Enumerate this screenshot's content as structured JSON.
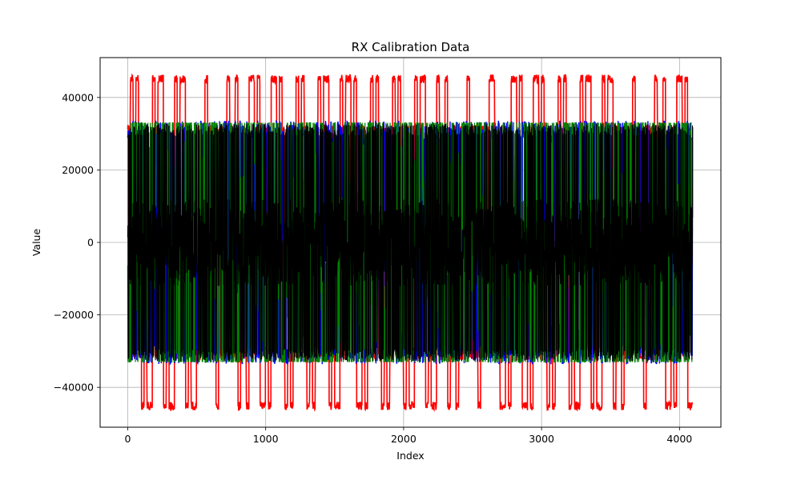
{
  "chart_data": {
    "type": "line",
    "title": "RX Calibration Data",
    "xlabel": "Index",
    "ylabel": "Value",
    "xlim": [
      -200,
      4300
    ],
    "ylim": [
      -51000,
      51000
    ],
    "x_ticks": [
      0,
      1000,
      2000,
      3000,
      4000
    ],
    "y_ticks": [
      -40000,
      -20000,
      0,
      20000,
      40000
    ],
    "x_tick_labels": [
      "0",
      "1000",
      "2000",
      "3000",
      "4000"
    ],
    "y_tick_labels": [
      "−40000",
      "−20000",
      "0",
      "20000",
      "40000"
    ],
    "grid": true,
    "legend": "none",
    "n_points": 4096,
    "series": [
      {
        "color": "#ff0000",
        "amplitude": 46300,
        "style": "square-ish pulses between +46300 and -46300"
      },
      {
        "color": "#0000ff",
        "amplitude": 33600,
        "style": "dense oscillation between +33600 and -33600"
      },
      {
        "color": "#008000",
        "amplitude": 33000,
        "style": "dense oscillation between +33000 and -33000"
      },
      {
        "color": "#000000",
        "amplitude": 32800,
        "style": "dense noisy oscillation, mostly within ±10000, spikes to ±32800"
      }
    ]
  }
}
